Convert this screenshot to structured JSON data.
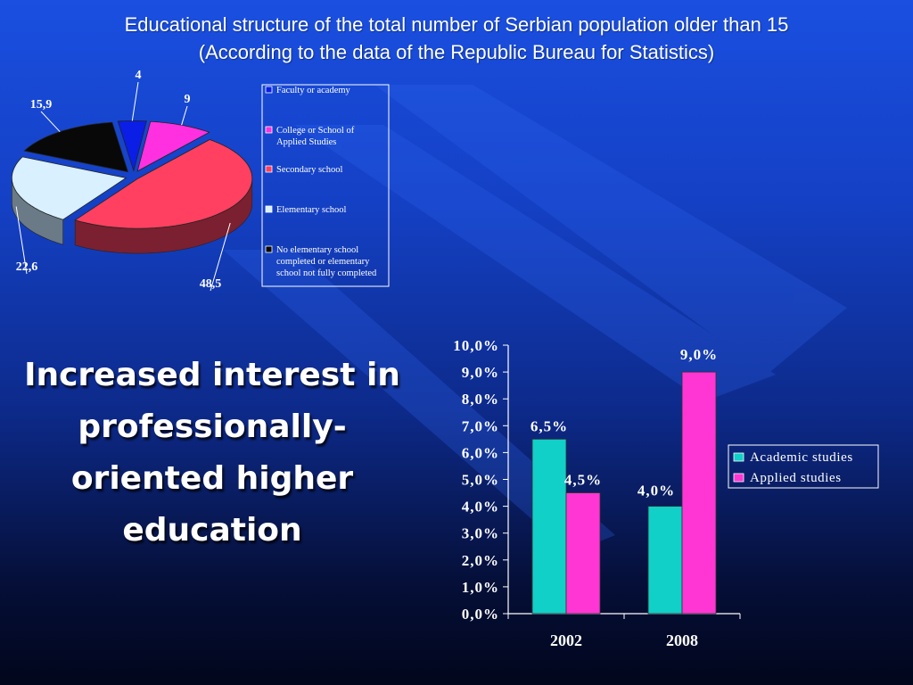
{
  "slide": {
    "title_line1": "Educational structure of the total number of Serbian population older than 15",
    "title_line2": "(According to the data of the Republic Bureau for Statistics)",
    "headline": "Increased interest in professionally-oriented higher education"
  },
  "chart_data": [
    {
      "type": "pie",
      "style": "3d-exploded",
      "labels": [
        "Faculty or academy",
        "College or School of Applied Studies",
        "Secondary school",
        "Elementary school",
        "No elementary school completed or elementary school not fully completed"
      ],
      "values": [
        4,
        9,
        48.5,
        22.6,
        15.9
      ],
      "value_labels": [
        "4",
        "9",
        "48,5",
        "22,6",
        "15,9"
      ],
      "colors": [
        "#0a1ee6",
        "#ff30e0",
        "#ff4060",
        "#d8f0ff",
        "#080808"
      ],
      "side_colors": [
        "#050f80",
        "#8c1878",
        "#7a2030",
        "#6a7a86",
        "#000000"
      ],
      "legend_position": "right"
    },
    {
      "type": "bar",
      "categories": [
        "2002",
        "2008"
      ],
      "series": [
        {
          "name": "Academic studies",
          "values": [
            6.5,
            4.0
          ],
          "labels": [
            "6,5%",
            "4,0%"
          ],
          "color": "#10d0c8"
        },
        {
          "name": "Applied studies",
          "values": [
            4.5,
            9.0
          ],
          "labels": [
            "4,5%",
            "9,0%"
          ],
          "color": "#ff36d4"
        }
      ],
      "ylim": [
        0,
        10
      ],
      "yticks": [
        "0,0%",
        "1,0%",
        "2,0%",
        "3,0%",
        "4,0%",
        "5,0%",
        "6,0%",
        "7,0%",
        "8,0%",
        "9,0%",
        "10,0%"
      ],
      "legend_position": "right",
      "grid": false
    }
  ]
}
